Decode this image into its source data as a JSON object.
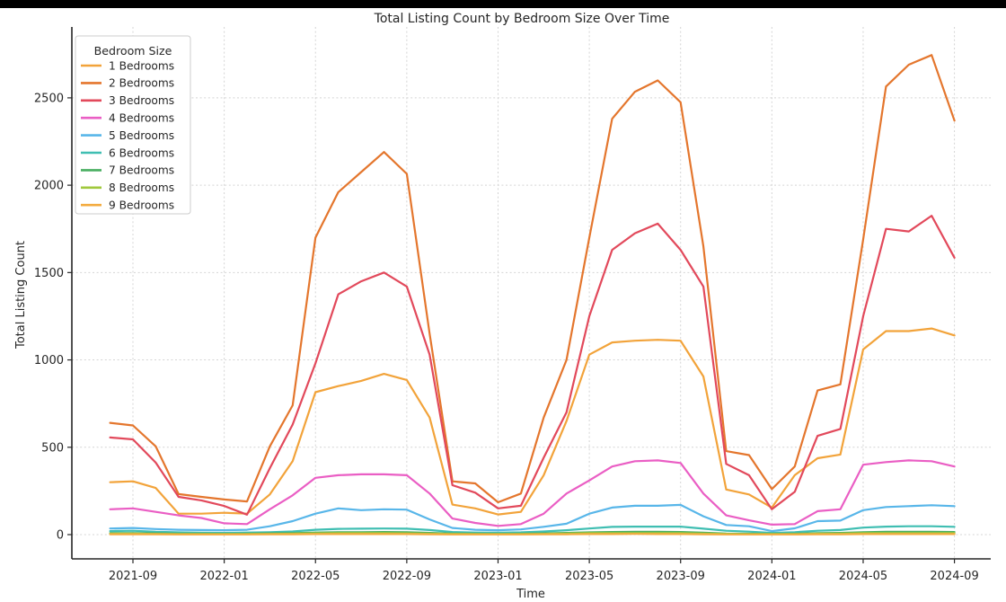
{
  "window": {
    "top_bar_color": "#000000",
    "background": "#ffffff"
  },
  "chart_data": {
    "type": "line",
    "title": "Total Listing Count by Bedroom Size Over Time",
    "xlabel": "Time",
    "ylabel": "Total Listing Count",
    "legend_title": "Bedroom Size",
    "legend_position": "upper left",
    "grid": true,
    "grid_style": "dashed",
    "ylim": [
      -140,
      2900
    ],
    "y_tick_values": [
      0,
      500,
      1000,
      1500,
      2000,
      2500
    ],
    "x_tick_labels": [
      "2021-09",
      "2022-01",
      "2022-05",
      "2022-09",
      "2023-01",
      "2023-05",
      "2023-09",
      "2024-01",
      "2024-05",
      "2024-09"
    ],
    "x": [
      "2021-08",
      "2021-09",
      "2021-10",
      "2021-11",
      "2021-12",
      "2022-01",
      "2022-02",
      "2022-03",
      "2022-04",
      "2022-05",
      "2022-06",
      "2022-07",
      "2022-08",
      "2022-09",
      "2022-10",
      "2022-11",
      "2022-12",
      "2023-01",
      "2023-02",
      "2023-03",
      "2023-04",
      "2023-05",
      "2023-06",
      "2023-07",
      "2023-08",
      "2023-09",
      "2023-10",
      "2023-11",
      "2023-12",
      "2024-01",
      "2024-02",
      "2024-03",
      "2024-04",
      "2024-05",
      "2024-06",
      "2024-07",
      "2024-08",
      "2024-09"
    ],
    "series": [
      {
        "name": "1 Bedrooms",
        "color": "#F2A33A",
        "values": [
          300,
          305,
          267,
          120,
          120,
          125,
          120,
          230,
          420,
          815,
          850,
          880,
          920,
          885,
          670,
          172,
          150,
          115,
          130,
          340,
          650,
          1030,
          1100,
          1110,
          1115,
          1110,
          905,
          258,
          230,
          155,
          340,
          437,
          458,
          1060,
          1165,
          1165,
          1180,
          1140
        ]
      },
      {
        "name": "2 Bedrooms",
        "color": "#E4762D",
        "values": [
          640,
          625,
          505,
          232,
          216,
          201,
          190,
          505,
          740,
          1700,
          1960,
          2075,
          2190,
          2065,
          1150,
          305,
          293,
          185,
          235,
          670,
          1000,
          1700,
          2380,
          2535,
          2600,
          2475,
          1650,
          478,
          455,
          260,
          390,
          825,
          860,
          1690,
          2565,
          2690,
          2745,
          2370
        ]
      },
      {
        "name": "3 Bedrooms",
        "color": "#E2495B",
        "values": [
          556,
          545,
          412,
          216,
          196,
          164,
          114,
          380,
          630,
          980,
          1375,
          1450,
          1500,
          1420,
          1030,
          283,
          240,
          150,
          165,
          440,
          700,
          1250,
          1630,
          1725,
          1780,
          1630,
          1420,
          405,
          340,
          145,
          245,
          565,
          605,
          1250,
          1750,
          1735,
          1825,
          1585
        ]
      },
      {
        "name": "4 Bedrooms",
        "color": "#EA5EC4",
        "values": [
          145,
          150,
          130,
          110,
          95,
          65,
          60,
          145,
          225,
          325,
          340,
          345,
          345,
          340,
          235,
          92,
          67,
          50,
          60,
          120,
          235,
          310,
          390,
          420,
          425,
          410,
          235,
          110,
          82,
          57,
          60,
          134,
          145,
          400,
          415,
          425,
          420,
          390
        ]
      },
      {
        "name": "5 Bedrooms",
        "color": "#58B6E9",
        "values": [
          35,
          38,
          32,
          28,
          26,
          25,
          28,
          48,
          77,
          120,
          150,
          140,
          145,
          143,
          87,
          38,
          28,
          25,
          30,
          45,
          62,
          120,
          155,
          165,
          165,
          170,
          105,
          55,
          48,
          20,
          36,
          77,
          80,
          140,
          158,
          163,
          168,
          163
        ]
      },
      {
        "name": "6 Bedrooms",
        "color": "#3FBEB2",
        "values": [
          20,
          22,
          16,
          13,
          11,
          10,
          12,
          14,
          18,
          28,
          33,
          34,
          35,
          34,
          26,
          15,
          12,
          11,
          13,
          18,
          25,
          35,
          44,
          46,
          46,
          46,
          34,
          22,
          17,
          10,
          14,
          22,
          26,
          40,
          46,
          48,
          48,
          45
        ]
      },
      {
        "name": "7 Bedrooms",
        "color": "#48AE60",
        "values": [
          8,
          9,
          7,
          5,
          5,
          4,
          5,
          7,
          9,
          12,
          14,
          14,
          15,
          14,
          10,
          6,
          5,
          4,
          5,
          7,
          10,
          13,
          15,
          16,
          16,
          15,
          11,
          6,
          5,
          4,
          5,
          8,
          10,
          14,
          16,
          16,
          16,
          15
        ]
      },
      {
        "name": "8 Bedrooms",
        "color": "#A0C83C",
        "values": [
          5,
          5,
          4,
          3,
          3,
          3,
          3,
          4,
          5,
          7,
          8,
          8,
          8,
          7,
          5,
          4,
          3,
          3,
          3,
          4,
          6,
          8,
          9,
          9,
          9,
          8,
          6,
          4,
          3,
          3,
          3,
          5,
          6,
          8,
          9,
          9,
          9,
          8
        ]
      },
      {
        "name": "9 Bedrooms",
        "color": "#F3AB3F",
        "values": [
          2,
          2,
          2,
          1,
          1,
          1,
          1,
          2,
          2,
          3,
          3,
          3,
          3,
          3,
          2,
          1,
          1,
          1,
          1,
          2,
          2,
          3,
          3,
          4,
          3,
          3,
          2,
          1,
          1,
          1,
          1,
          2,
          2,
          3,
          3,
          3,
          3,
          3
        ]
      }
    ]
  }
}
